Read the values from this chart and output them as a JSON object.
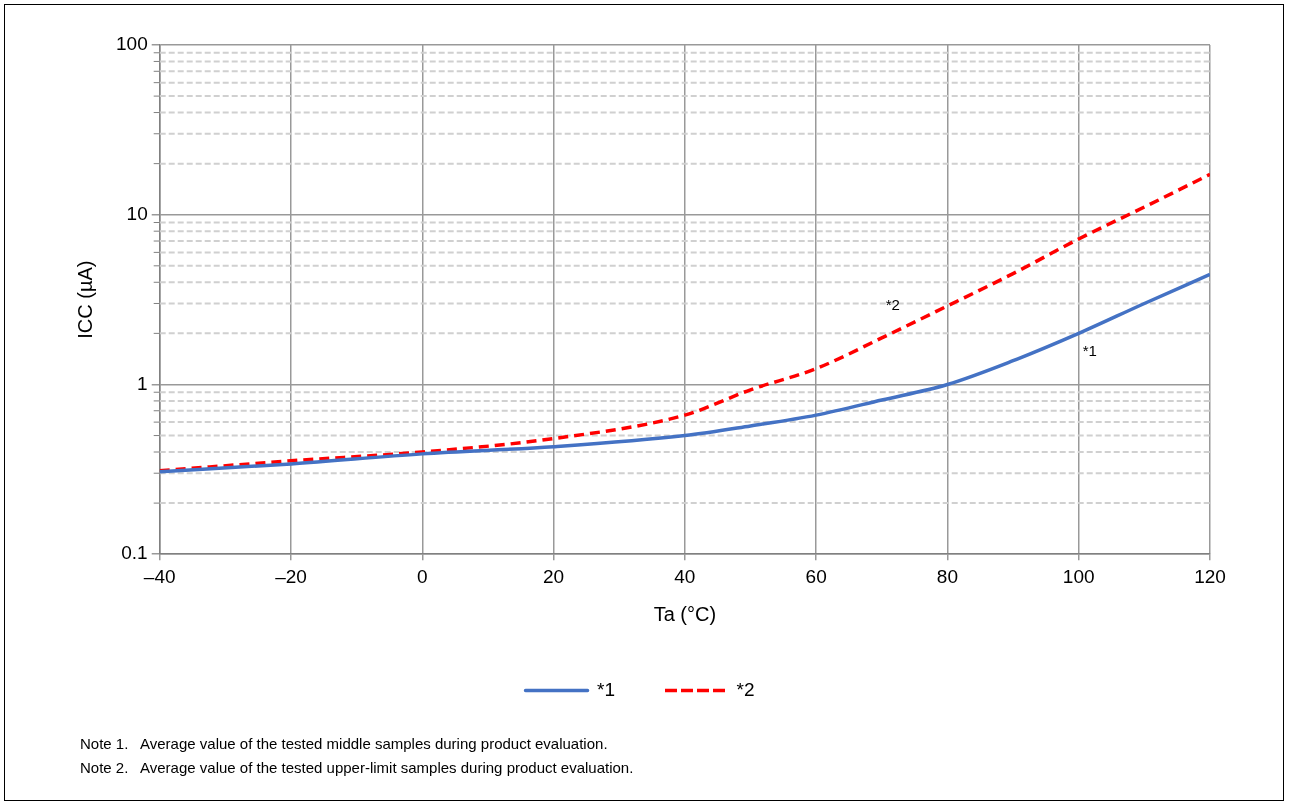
{
  "chart_data": {
    "type": "line",
    "xlabel": "Ta (°C)",
    "ylabel": "ICC (µA)",
    "x": [
      -40,
      -20,
      0,
      20,
      40,
      50,
      60,
      70,
      80,
      90,
      100,
      110,
      120
    ],
    "series": [
      {
        "name": "*1",
        "color": "#4472c4",
        "line_style": "solid",
        "values": [
          0.306,
          0.34,
          0.39,
          0.43,
          0.5,
          0.57,
          0.66,
          0.81,
          1.0,
          1.38,
          2.0,
          3.0,
          4.45
        ]
      },
      {
        "name": "*2",
        "color": "#ff0000",
        "line_style": "dashed",
        "values": [
          0.31,
          0.355,
          0.4,
          0.48,
          0.66,
          0.93,
          1.24,
          1.88,
          2.9,
          4.5,
          7.2,
          11.1,
          17.3
        ]
      }
    ],
    "xlim": [
      -40,
      120
    ],
    "xticks": [
      {
        "value": -40,
        "label": "–40"
      },
      {
        "value": -20,
        "label": "–20"
      },
      0,
      20,
      40,
      60,
      80,
      100,
      120
    ],
    "ylim": [
      0.1,
      100
    ],
    "yticks": [
      0.1,
      1,
      10,
      100
    ],
    "log": "y",
    "grid": true,
    "legend": "bottom",
    "marker": "none",
    "annotations": [
      {
        "text": "*2",
        "x": 70,
        "y": 1.88
      },
      {
        "text": "*1",
        "x": 100,
        "y": 2.0
      },
      "Note 1.   Average value of the tested middle samples during product evaluation.",
      "Note 2.   Average value of the tested upper-limit samples during product evaluation."
    ]
  }
}
